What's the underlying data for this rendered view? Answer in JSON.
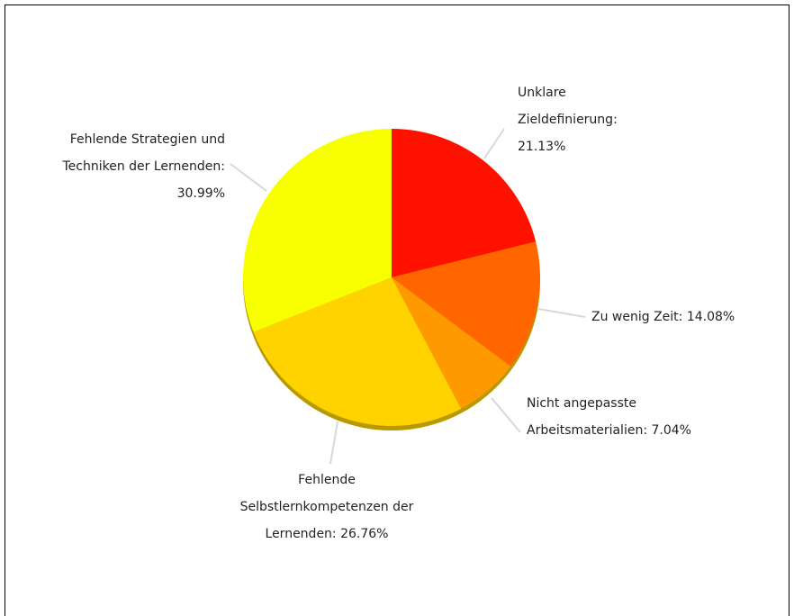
{
  "chart_data": {
    "type": "pie",
    "categories": [
      "Unklare Zieldefinierung: 21.13%",
      "Zu wenig Zeit: 14.08%",
      "Nicht angepasste Arbeitsmaterialien: 7.04%",
      "Fehlende Selbstlernkompetenzen der Lernenden: 26.76%",
      "Fehlende Strategien und Techniken der Lernenden: 30.99%"
    ],
    "values": [
      21.13,
      14.08,
      7.04,
      26.76,
      30.99
    ],
    "colors": [
      "#ff1100",
      "#ff6600",
      "#ff9900",
      "#ffd200",
      "#f8ff00"
    ]
  }
}
